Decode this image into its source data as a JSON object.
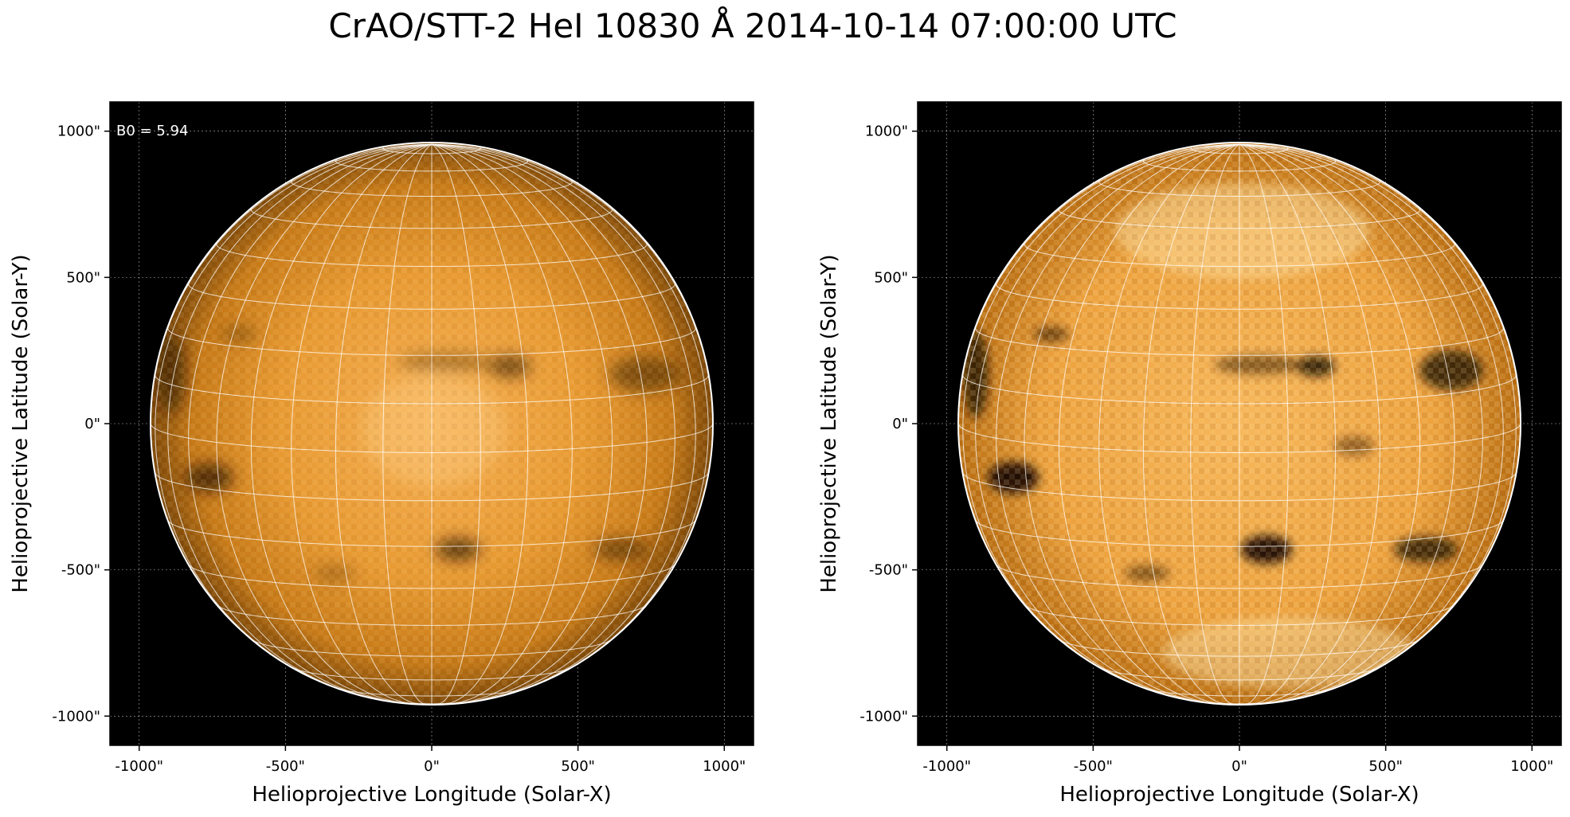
{
  "title": "CrAO/STT-2 HeI 10830 Å 2014-10-14 07:00:00 UTC",
  "panels": [
    {
      "id": "left",
      "annotation": "B0 = 5.94",
      "xlabel": "Helioprojective Longitude (Solar-X)",
      "ylabel": "Helioprojective Latitude (Solar-Y)",
      "xticks": [
        "-1000\"",
        "-500\"",
        "0\"",
        "500\"",
        "1000\""
      ],
      "yticks": [
        "1000\"",
        "500\"",
        "0\"",
        "-500\"",
        "-1000\""
      ],
      "xlim": [
        -1100,
        1100
      ],
      "ylim": [
        -1100,
        1100
      ],
      "style": "smooth"
    },
    {
      "id": "right",
      "annotation": "",
      "xlabel": "Helioprojective Longitude (Solar-X)",
      "ylabel": "Helioprojective Latitude (Solar-Y)",
      "xticks": [
        "-1000\"",
        "-500\"",
        "0\"",
        "500\"",
        "1000\""
      ],
      "yticks": [
        "1000\"",
        "500\"",
        "0\"",
        "-500\"",
        "-1000\""
      ],
      "xlim": [
        -1100,
        1100
      ],
      "ylim": [
        -1100,
        1100
      ],
      "style": "enhanced"
    }
  ],
  "colors": {
    "background": "#000000",
    "disk_center": "#f2a646",
    "disk_edge": "#7a4608",
    "grid": "#ffffff"
  }
}
